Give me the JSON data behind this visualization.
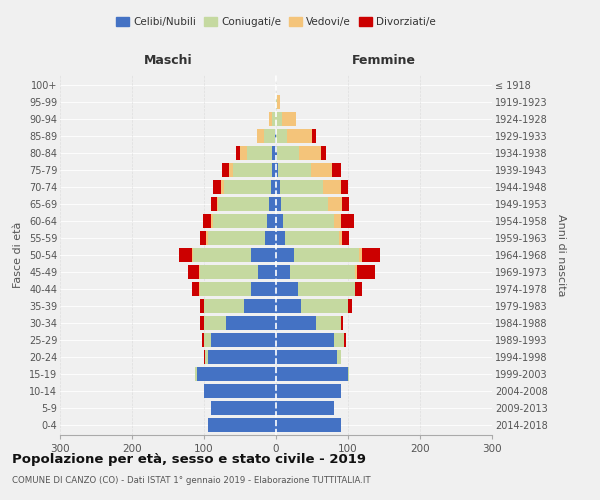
{
  "age_groups": [
    "0-4",
    "5-9",
    "10-14",
    "15-19",
    "20-24",
    "25-29",
    "30-34",
    "35-39",
    "40-44",
    "45-49",
    "50-54",
    "55-59",
    "60-64",
    "65-69",
    "70-74",
    "75-79",
    "80-84",
    "85-89",
    "90-94",
    "95-99",
    "100+"
  ],
  "birth_years": [
    "2014-2018",
    "2009-2013",
    "2004-2008",
    "1999-2003",
    "1994-1998",
    "1989-1993",
    "1984-1988",
    "1979-1983",
    "1974-1978",
    "1969-1973",
    "1964-1968",
    "1959-1963",
    "1954-1958",
    "1949-1953",
    "1944-1948",
    "1939-1943",
    "1934-1938",
    "1929-1933",
    "1924-1928",
    "1919-1923",
    "≤ 1918"
  ],
  "male": {
    "celibi": [
      95,
      90,
      100,
      110,
      95,
      90,
      70,
      45,
      35,
      25,
      35,
      15,
      13,
      10,
      7,
      5,
      5,
      2,
      0,
      0,
      0
    ],
    "coniugati": [
      0,
      0,
      0,
      2,
      3,
      10,
      30,
      55,
      70,
      80,
      80,
      80,
      75,
      70,
      65,
      55,
      35,
      15,
      5,
      0,
      0
    ],
    "vedovi": [
      0,
      0,
      0,
      0,
      0,
      0,
      0,
      0,
      2,
      2,
      2,
      2,
      2,
      2,
      5,
      5,
      10,
      10,
      5,
      0,
      0
    ],
    "divorziati": [
      0,
      0,
      0,
      0,
      2,
      3,
      5,
      5,
      10,
      15,
      18,
      8,
      12,
      8,
      10,
      10,
      5,
      0,
      0,
      0,
      0
    ]
  },
  "female": {
    "nubili": [
      90,
      80,
      90,
      100,
      85,
      80,
      55,
      35,
      30,
      20,
      25,
      12,
      10,
      7,
      5,
      3,
      2,
      0,
      0,
      0,
      0
    ],
    "coniugate": [
      0,
      0,
      0,
      2,
      5,
      15,
      35,
      65,
      80,
      90,
      90,
      75,
      70,
      65,
      60,
      45,
      30,
      15,
      8,
      2,
      0
    ],
    "vedove": [
      0,
      0,
      0,
      0,
      0,
      0,
      0,
      0,
      0,
      2,
      5,
      5,
      10,
      20,
      25,
      30,
      30,
      35,
      20,
      3,
      0
    ],
    "divorziate": [
      0,
      0,
      0,
      0,
      0,
      2,
      3,
      5,
      10,
      25,
      25,
      10,
      18,
      10,
      10,
      12,
      8,
      5,
      0,
      0,
      0
    ]
  },
  "colors": {
    "celibi": "#4472C4",
    "coniugati": "#C5D9A0",
    "vedovi": "#F4C47A",
    "divorziati": "#CC0000"
  },
  "xlim": 300,
  "title": "Popolazione per età, sesso e stato civile - 2019",
  "subtitle": "COMUNE DI CANZO (CO) - Dati ISTAT 1° gennaio 2019 - Elaborazione TUTTITALIA.IT",
  "ylabel_left": "Fasce di età",
  "ylabel_right": "Anni di nascita",
  "header_left": "Maschi",
  "header_right": "Femmine",
  "legend_labels": [
    "Celibi/Nubili",
    "Coniugati/e",
    "Vedovi/e",
    "Divorziati/e"
  ],
  "background_color": "#f0f0f0"
}
